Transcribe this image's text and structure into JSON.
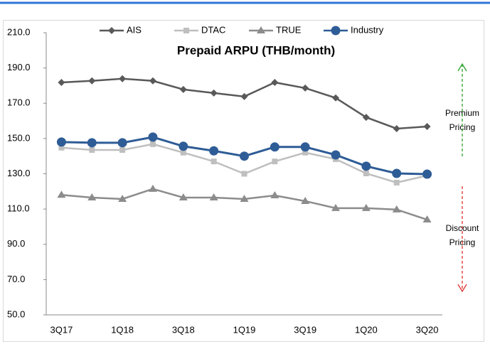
{
  "chart_data": {
    "type": "line",
    "title": "Prepaid ARPU (THB/month)",
    "categories": [
      "3Q17",
      null,
      "1Q18",
      null,
      "3Q18",
      null,
      "1Q19",
      null,
      "3Q19",
      null,
      "1Q20",
      null,
      "3Q20"
    ],
    "series": [
      {
        "name": "AIS",
        "color": "#595959",
        "marker": "diamond",
        "values": [
          181.8,
          182.7,
          183.9,
          182.7,
          177.8,
          175.8,
          173.8,
          181.8,
          178.6,
          173.0,
          162.0,
          155.6,
          156.8
        ]
      },
      {
        "name": "DTAC",
        "color": "#bfbfbf",
        "marker": "square",
        "values": [
          144.8,
          143.5,
          143.5,
          146.8,
          142.0,
          137.0,
          130.0,
          137.0,
          142.0,
          138.3,
          130.2,
          125.0,
          129.0
        ]
      },
      {
        "name": "TRUE",
        "color": "#8c8c8c",
        "marker": "triangle",
        "values": [
          118.0,
          116.5,
          115.7,
          121.4,
          116.5,
          116.5,
          115.7,
          117.7,
          114.5,
          110.5,
          110.5,
          109.7,
          104.0
        ]
      },
      {
        "name": "Industry",
        "color": "#2e5c96",
        "marker": "circle",
        "values": [
          148.0,
          147.6,
          147.6,
          150.8,
          145.6,
          143.0,
          140.0,
          145.2,
          145.2,
          140.7,
          134.3,
          130.2,
          129.8
        ]
      }
    ],
    "ylim": [
      50,
      210
    ],
    "yticks": [
      {
        "value": 50,
        "label": "50.0"
      },
      {
        "value": 70,
        "label": "70.0"
      },
      {
        "value": 90,
        "label": "90.0"
      },
      {
        "value": 110,
        "label": "110.0"
      },
      {
        "value": 130,
        "label": "130.0"
      },
      {
        "value": 150,
        "label": "150.0"
      },
      {
        "value": 170,
        "label": "170.0"
      },
      {
        "value": 190,
        "label": "190.0"
      },
      {
        "value": 210,
        "label": "210.0"
      }
    ],
    "grid": false,
    "legend": "top",
    "annotations": [
      {
        "lines": [
          "Premium",
          "Pricing"
        ],
        "color": "#2ca02c"
      },
      {
        "lines": [
          "Discount",
          "Pricing"
        ],
        "color": "#e03030"
      }
    ]
  }
}
